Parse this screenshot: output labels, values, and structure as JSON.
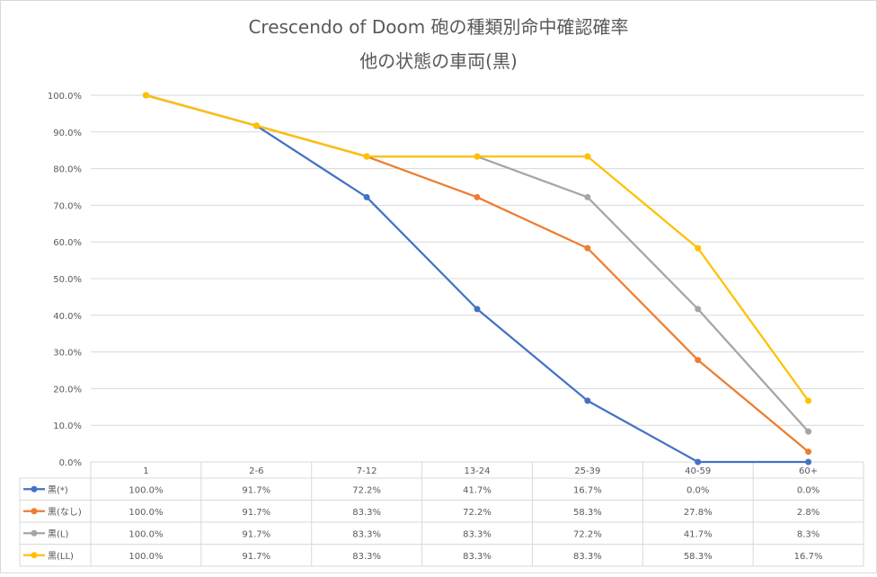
{
  "chart_data": {
    "type": "line",
    "title": "Crescendo of Doom 砲の種類別命中確認確率",
    "subtitle": "他の状態の車両(黒)",
    "categories": [
      "1",
      "2-6",
      "7-12",
      "13-24",
      "25-39",
      "40-59",
      "60+"
    ],
    "ylim": [
      0,
      100
    ],
    "yticks": [
      "0.0%",
      "10.0%",
      "20.0%",
      "30.0%",
      "40.0%",
      "50.0%",
      "60.0%",
      "70.0%",
      "80.0%",
      "90.0%",
      "100.0%"
    ],
    "grid": true,
    "legend_placement": "data-table",
    "series": [
      {
        "name": "黒(*)",
        "color": "#4472C4",
        "values": [
          100.0,
          91.7,
          72.2,
          41.7,
          16.7,
          0.0,
          0.0
        ],
        "labels": [
          "100.0%",
          "91.7%",
          "72.2%",
          "41.7%",
          "16.7%",
          "0.0%",
          "0.0%"
        ]
      },
      {
        "name": "黒(なし)",
        "color": "#ED7D31",
        "values": [
          100.0,
          91.7,
          83.3,
          72.2,
          58.3,
          27.8,
          2.8
        ],
        "labels": [
          "100.0%",
          "91.7%",
          "83.3%",
          "72.2%",
          "58.3%",
          "27.8%",
          "2.8%"
        ]
      },
      {
        "name": "黒(L)",
        "color": "#A5A5A5",
        "values": [
          100.0,
          91.7,
          83.3,
          83.3,
          72.2,
          41.7,
          8.3
        ],
        "labels": [
          "100.0%",
          "91.7%",
          "83.3%",
          "83.3%",
          "72.2%",
          "41.7%",
          "8.3%"
        ]
      },
      {
        "name": "黒(LL)",
        "color": "#FFC000",
        "values": [
          100.0,
          91.7,
          83.3,
          83.3,
          83.3,
          58.3,
          16.7
        ],
        "labels": [
          "100.0%",
          "91.7%",
          "83.3%",
          "83.3%",
          "83.3%",
          "58.3%",
          "16.7%"
        ]
      }
    ]
  }
}
